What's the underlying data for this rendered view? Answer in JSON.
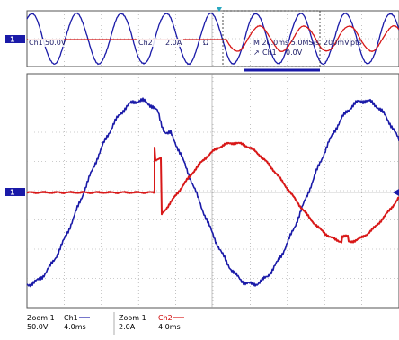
{
  "colors": {
    "ch1": "#1a1aa8",
    "ch2": "#d81818",
    "grid": "#9a9a9a",
    "border": "#555555",
    "marker_bg": "#1a1aa8",
    "trigger": "#2aa8c0"
  },
  "markers": {
    "ch_ref_overview": "1",
    "ch_ref_zoom": "1"
  },
  "overview": {
    "ch1_scale": "Ch1",
    "ch1_volts": "50.0V",
    "ch2_scale": "Ch2",
    "ch2_amps": "2.0A",
    "omega": "Ω",
    "timebase": "M 20.0ms 5.0MS/s",
    "trigger_source": "Ch1",
    "trigger_arrow": "↗",
    "trigger_level": "0.0V",
    "record_length": "200mV",
    "record_length_unit": "pts"
  },
  "footer": {
    "z1_label": "Zoom 1",
    "z1_ch": "Ch1",
    "z1_volts": "50.0V",
    "z1_time": "4.0ms",
    "z2_label": "Zoom 1",
    "z2_ch": "Ch2",
    "z2_amps": "2.0A",
    "z2_time": "4.0ms"
  }
}
